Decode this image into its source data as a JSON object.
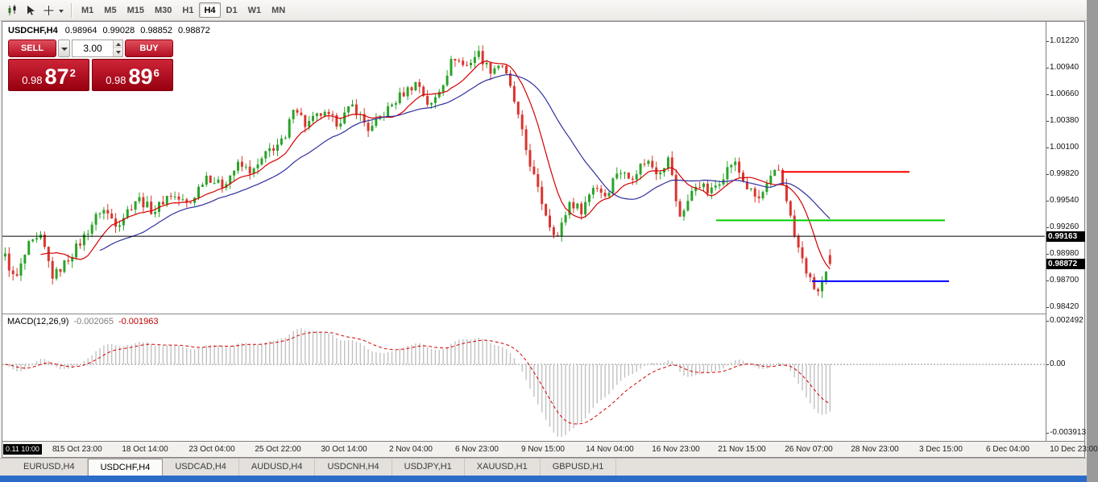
{
  "toolbar": {
    "timeframes": [
      "M1",
      "M5",
      "M15",
      "M30",
      "H1",
      "H4",
      "D1",
      "W1",
      "MN"
    ],
    "active_timeframe": "H4",
    "icons": [
      "candlestick-chart-icon",
      "arrow-cursor-icon",
      "crosshair-icon",
      "dropdown-caret-icon"
    ]
  },
  "chart": {
    "title_symbol": "USDCHF,H4",
    "ohlc": {
      "open": "0.98964",
      "high": "0.99028",
      "low": "0.98852",
      "close": "0.98872"
    }
  },
  "trade_panel": {
    "sell_label": "SELL",
    "buy_label": "BUY",
    "volume": "3.00",
    "sell_price": {
      "big_prefix": "0.98",
      "big": "87",
      "sup": "2"
    },
    "buy_price": {
      "big_prefix": "0.98",
      "big": "89",
      "sup": "6"
    }
  },
  "price_scale": {
    "ticks": [
      "1.01220",
      "1.00940",
      "1.00660",
      "1.00380",
      "1.00100",
      "0.99820",
      "0.99540",
      "0.99260",
      "0.98980",
      "0.98700",
      "0.98420"
    ],
    "line_price_box": "0.99163",
    "bid_price_box": "0.98872"
  },
  "macd": {
    "label": "MACD(12,26,9)",
    "value_macd": "-0.002065",
    "value_signal": "-0.001963",
    "scale": [
      "0.002492",
      "0.00",
      "-0.003913"
    ]
  },
  "time_axis": {
    "origin_box": "0.11 10:00",
    "origin_suffix": "8",
    "labels": [
      "15 Oct 23:00",
      "18 Oct 14:00",
      "23 Oct 04:00",
      "25 Oct 22:00",
      "30 Oct 14:00",
      "2 Nov 04:00",
      "6 Nov 23:00",
      "9 Nov 15:00",
      "14 Nov 04:00",
      "16 Nov 23:00",
      "21 Nov 15:00",
      "26 Nov 07:00",
      "28 Nov 23:00",
      "3 Dec 15:00",
      "6 Dec 04:00",
      "10 Dec 23:00"
    ]
  },
  "tabs": {
    "items": [
      "EURUSD,H4",
      "USDCHF,H4",
      "USDCAD,H4",
      "AUDUSD,H4",
      "USDCNH,H4",
      "USDJPY,H1",
      "XAUUSD,H1",
      "GBPUSD,H1"
    ],
    "active": "USDCHF,H4"
  },
  "colors": {
    "buy_sell_button_red": "#b30d22",
    "price_panel_red": "#97000f",
    "taskbar_blue": "#2b6cc8",
    "price_box_black": "#000000"
  },
  "chart_data": {
    "type": "candlestick",
    "symbol": "USDCHF",
    "timeframe": "H4",
    "price": {
      "ylim": [
        0.9835,
        1.0142
      ],
      "ticks": [
        1.0122,
        1.0094,
        1.0066,
        1.0038,
        1.001,
        0.9982,
        0.9954,
        0.9926,
        0.9898,
        0.987,
        0.9842
      ],
      "candle_count": 210,
      "candle_area_frac": 0.795,
      "up_color": "#2aa32a",
      "down_color": "#d9352f",
      "last_candle": {
        "open": 0.98964,
        "high": 0.99028,
        "low": 0.98852,
        "close": 0.98872
      },
      "close_path": [
        [
          0.0,
          0.9895
        ],
        [
          0.012,
          0.9868
        ],
        [
          0.028,
          0.9906
        ],
        [
          0.044,
          0.9914
        ],
        [
          0.058,
          0.9873
        ],
        [
          0.073,
          0.9889
        ],
        [
          0.092,
          0.9911
        ],
        [
          0.117,
          0.9946
        ],
        [
          0.136,
          0.9929
        ],
        [
          0.16,
          0.9957
        ],
        [
          0.18,
          0.9942
        ],
        [
          0.199,
          0.9961
        ],
        [
          0.223,
          0.9949
        ],
        [
          0.243,
          0.9981
        ],
        [
          0.262,
          0.9969
        ],
        [
          0.282,
          0.9991
        ],
        [
          0.301,
          0.9984
        ],
        [
          0.32,
          1.0007
        ],
        [
          0.34,
          1.0018
        ],
        [
          0.35,
          1.0057
        ],
        [
          0.364,
          1.0033
        ],
        [
          0.383,
          1.0045
        ],
        [
          0.403,
          1.0036
        ],
        [
          0.422,
          1.0054
        ],
        [
          0.442,
          1.0027
        ],
        [
          0.461,
          1.0047
        ],
        [
          0.48,
          1.0065
        ],
        [
          0.5,
          1.0079
        ],
        [
          0.515,
          1.0051
        ],
        [
          0.529,
          1.0075
        ],
        [
          0.544,
          1.0106
        ],
        [
          0.558,
          1.0094
        ],
        [
          0.573,
          1.011
        ],
        [
          0.587,
          1.0091
        ],
        [
          0.602,
          1.0099
        ],
        [
          0.617,
          1.0059
        ],
        [
          0.631,
          1.0009
        ],
        [
          0.646,
          0.9964
        ],
        [
          0.66,
          0.9929
        ],
        [
          0.67,
          0.9916
        ],
        [
          0.684,
          0.9952
        ],
        [
          0.699,
          0.9944
        ],
        [
          0.714,
          0.9971
        ],
        [
          0.728,
          0.9959
        ],
        [
          0.743,
          0.9987
        ],
        [
          0.757,
          0.9977
        ],
        [
          0.777,
          0.9997
        ],
        [
          0.791,
          0.9984
        ],
        [
          0.806,
          0.9999
        ],
        [
          0.816,
          0.9934
        ],
        [
          0.825,
          0.9949
        ],
        [
          0.84,
          0.9974
        ],
        [
          0.854,
          0.9961
        ],
        [
          0.869,
          0.9979
        ],
        [
          0.883,
          0.9996
        ],
        [
          0.898,
          0.9969
        ],
        [
          0.913,
          0.9954
        ],
        [
          0.927,
          0.9974
        ],
        [
          0.937,
          0.9988
        ],
        [
          0.947,
          0.9958
        ],
        [
          0.956,
          0.9919
        ],
        [
          0.966,
          0.9892
        ],
        [
          0.976,
          0.9869
        ],
        [
          0.985,
          0.9857
        ],
        [
          0.995,
          0.9874
        ],
        [
          1.0,
          0.98872
        ]
      ],
      "moving_averages": [
        {
          "period": 10,
          "color": "#d40000"
        },
        {
          "period": 25,
          "color": "#2f2f9e"
        }
      ],
      "hlines": [
        {
          "color": "#000000",
          "price": 0.99163,
          "x1": 0.0,
          "x2": 1.0,
          "width": 1
        },
        {
          "color": "#ff0000",
          "price": 0.9984,
          "x1": 0.747,
          "x2": 0.87,
          "width": 2
        },
        {
          "color": "#00cc00",
          "price": 0.9933,
          "x1": 0.685,
          "x2": 0.904,
          "width": 2
        },
        {
          "color": "#0000ff",
          "price": 0.9869,
          "x1": 0.777,
          "x2": 0.908,
          "width": 2
        }
      ]
    },
    "macd": {
      "fast": 12,
      "slow": 26,
      "signal": 9,
      "ylim": [
        -0.00435,
        0.00285
      ],
      "hist_color": "#c2c2c2",
      "signal_color": "#d40000",
      "current": [
        -0.002065,
        -0.001963
      ]
    }
  }
}
